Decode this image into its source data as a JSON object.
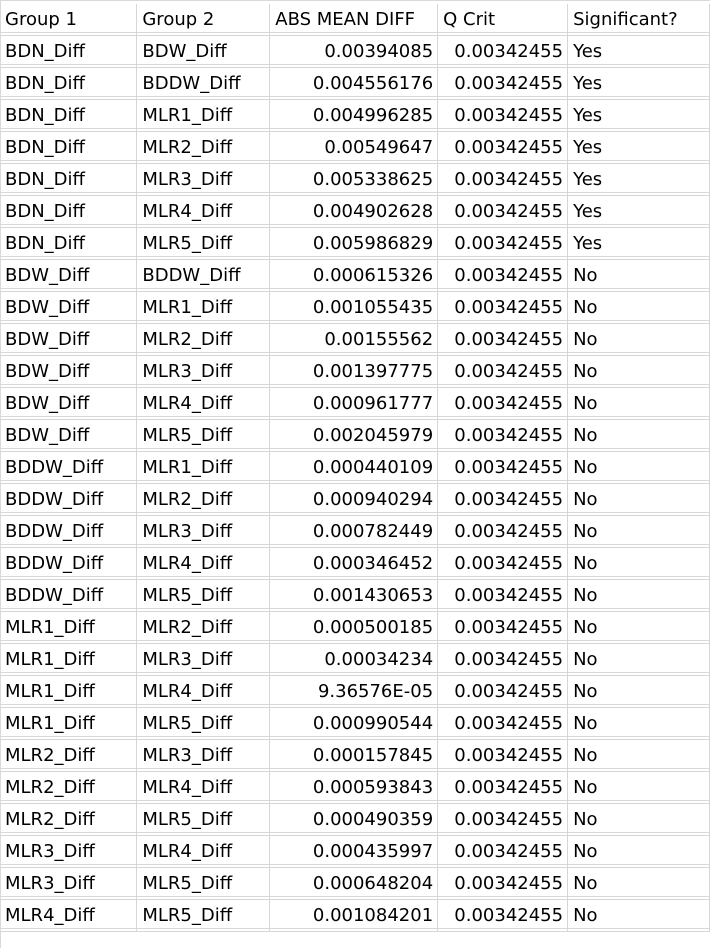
{
  "headers": {
    "group1": "Group 1",
    "group2": "Group 2",
    "abs_mean_diff": "ABS MEAN DIFF",
    "q_crit": "Q Crit",
    "significant": "Significant?"
  },
  "rows": [
    {
      "g1": "BDN_Diff",
      "g2": "BDW_Diff",
      "diff": "0.00394085",
      "q": "0.00342455",
      "sig": "Yes"
    },
    {
      "g1": "BDN_Diff",
      "g2": "BDDW_Diff",
      "diff": "0.004556176",
      "q": "0.00342455",
      "sig": "Yes"
    },
    {
      "g1": "BDN_Diff",
      "g2": "MLR1_Diff",
      "diff": "0.004996285",
      "q": "0.00342455",
      "sig": "Yes"
    },
    {
      "g1": "BDN_Diff",
      "g2": "MLR2_Diff",
      "diff": "0.00549647",
      "q": "0.00342455",
      "sig": "Yes"
    },
    {
      "g1": "BDN_Diff",
      "g2": "MLR3_Diff",
      "diff": "0.005338625",
      "q": "0.00342455",
      "sig": "Yes"
    },
    {
      "g1": "BDN_Diff",
      "g2": "MLR4_Diff",
      "diff": "0.004902628",
      "q": "0.00342455",
      "sig": "Yes"
    },
    {
      "g1": "BDN_Diff",
      "g2": "MLR5_Diff",
      "diff": "0.005986829",
      "q": "0.00342455",
      "sig": "Yes"
    },
    {
      "g1": "BDW_Diff",
      "g2": "BDDW_Diff",
      "diff": "0.000615326",
      "q": "0.00342455",
      "sig": "No"
    },
    {
      "g1": "BDW_Diff",
      "g2": "MLR1_Diff",
      "diff": "0.001055435",
      "q": "0.00342455",
      "sig": "No"
    },
    {
      "g1": "BDW_Diff",
      "g2": "MLR2_Diff",
      "diff": "0.00155562",
      "q": "0.00342455",
      "sig": "No"
    },
    {
      "g1": "BDW_Diff",
      "g2": "MLR3_Diff",
      "diff": "0.001397775",
      "q": "0.00342455",
      "sig": "No"
    },
    {
      "g1": "BDW_Diff",
      "g2": "MLR4_Diff",
      "diff": "0.000961777",
      "q": "0.00342455",
      "sig": "No"
    },
    {
      "g1": "BDW_Diff",
      "g2": "MLR5_Diff",
      "diff": "0.002045979",
      "q": "0.00342455",
      "sig": "No"
    },
    {
      "g1": "BDDW_Diff",
      "g2": "MLR1_Diff",
      "diff": "0.000440109",
      "q": "0.00342455",
      "sig": "No"
    },
    {
      "g1": "BDDW_Diff",
      "g2": "MLR2_Diff",
      "diff": "0.000940294",
      "q": "0.00342455",
      "sig": "No"
    },
    {
      "g1": "BDDW_Diff",
      "g2": "MLR3_Diff",
      "diff": "0.000782449",
      "q": "0.00342455",
      "sig": "No"
    },
    {
      "g1": "BDDW_Diff",
      "g2": "MLR4_Diff",
      "diff": "0.000346452",
      "q": "0.00342455",
      "sig": "No"
    },
    {
      "g1": "BDDW_Diff",
      "g2": "MLR5_Diff",
      "diff": "0.001430653",
      "q": "0.00342455",
      "sig": "No"
    },
    {
      "g1": "MLR1_Diff",
      "g2": "MLR2_Diff",
      "diff": "0.000500185",
      "q": "0.00342455",
      "sig": "No"
    },
    {
      "g1": "MLR1_Diff",
      "g2": "MLR3_Diff",
      "diff": "0.00034234",
      "q": "0.00342455",
      "sig": "No"
    },
    {
      "g1": "MLR1_Diff",
      "g2": "MLR4_Diff",
      "diff": "9.36576E-05",
      "q": "0.00342455",
      "sig": "No"
    },
    {
      "g1": "MLR1_Diff",
      "g2": "MLR5_Diff",
      "diff": "0.000990544",
      "q": "0.00342455",
      "sig": "No"
    },
    {
      "g1": "MLR2_Diff",
      "g2": "MLR3_Diff",
      "diff": "0.000157845",
      "q": "0.00342455",
      "sig": "No"
    },
    {
      "g1": "MLR2_Diff",
      "g2": "MLR4_Diff",
      "diff": "0.000593843",
      "q": "0.00342455",
      "sig": "No"
    },
    {
      "g1": "MLR2_Diff",
      "g2": "MLR5_Diff",
      "diff": "0.000490359",
      "q": "0.00342455",
      "sig": "No"
    },
    {
      "g1": "MLR3_Diff",
      "g2": "MLR4_Diff",
      "diff": "0.000435997",
      "q": "0.00342455",
      "sig": "No"
    },
    {
      "g1": "MLR3_Diff",
      "g2": "MLR5_Diff",
      "diff": "0.000648204",
      "q": "0.00342455",
      "sig": "No"
    },
    {
      "g1": "MLR4_Diff",
      "g2": "MLR5_Diff",
      "diff": "0.001084201",
      "q": "0.00342455",
      "sig": "No"
    }
  ]
}
